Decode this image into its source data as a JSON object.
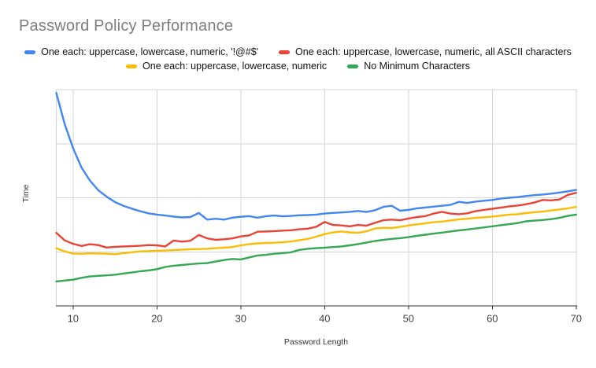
{
  "title": "Password Policy Performance",
  "colors": {
    "background": "#ffffff",
    "title_text": "#7e7e7e",
    "legend_text": "#111111",
    "axis_title_text": "#333333",
    "tick_text": "#444444",
    "gridline": "#d5d5d5",
    "axis_line": "#333333",
    "series_blue": "#4285F4",
    "series_red": "#EA4335",
    "series_yellow": "#FBBC04",
    "series_green": "#34A853"
  },
  "chart_data": {
    "type": "line",
    "title": "Password Policy Performance",
    "xlabel": "Password Length",
    "ylabel": "Time",
    "legend_position": "top",
    "grid": true,
    "xlim": [
      8,
      70
    ],
    "ylim": [
      0,
      100
    ],
    "x_ticks": [
      10,
      20,
      30,
      40,
      50,
      60,
      70
    ],
    "y_tick_labels_shown": false,
    "y_note": "y axis is unlabeled ('Time'); values below are relative units of plot height (0-100)",
    "x": [
      8,
      9,
      10,
      11,
      12,
      13,
      14,
      15,
      16,
      17,
      18,
      19,
      20,
      21,
      22,
      23,
      24,
      25,
      26,
      27,
      28,
      29,
      30,
      31,
      32,
      33,
      34,
      35,
      36,
      37,
      38,
      39,
      40,
      41,
      42,
      43,
      44,
      45,
      46,
      47,
      48,
      49,
      50,
      51,
      52,
      53,
      54,
      55,
      56,
      57,
      58,
      59,
      60,
      61,
      62,
      63,
      64,
      65,
      66,
      67,
      68,
      69,
      70
    ],
    "series": [
      {
        "name": "One each: uppercase, lowercase, numeric, '!@#$'",
        "color": "#4285F4",
        "values": [
          98.5,
          84,
          73,
          64,
          58,
          53.5,
          50.5,
          48,
          46.3,
          45,
          43.8,
          42.8,
          42.2,
          41.8,
          41.3,
          40.9,
          41.1,
          43,
          39.9,
          40.3,
          39.9,
          40.8,
          41.2,
          41.5,
          40.8,
          41.5,
          41.8,
          41.4,
          41.6,
          41.9,
          42,
          42.2,
          42.7,
          43,
          43.2,
          43.5,
          43.9,
          43.4,
          44.2,
          45.8,
          46.3,
          44,
          44.4,
          45.1,
          45.5,
          45.9,
          46.3,
          46.7,
          48.1,
          47.6,
          48.2,
          48.6,
          49,
          49.6,
          50,
          50.3,
          50.8,
          51.2,
          51.5,
          51.9,
          52.4,
          53,
          53.6
        ]
      },
      {
        "name": "One each: uppercase, lowercase, numeric, all ASCII characters",
        "color": "#EA4335",
        "values": [
          33.8,
          30.3,
          28.7,
          27.7,
          28.5,
          28.1,
          27,
          27.3,
          27.5,
          27.6,
          27.8,
          28.1,
          28,
          27.5,
          30.2,
          29.7,
          30.1,
          32.8,
          31.2,
          30.6,
          30.8,
          31.2,
          32.1,
          32.6,
          34.3,
          34.4,
          34.6,
          34.8,
          35,
          35.4,
          35.7,
          36.6,
          38.8,
          37.4,
          37.2,
          36.8,
          37.4,
          37.1,
          38.4,
          39.6,
          39.9,
          39.6,
          40.4,
          41.1,
          41.5,
          42.7,
          43.5,
          42.7,
          42.4,
          42.8,
          43.8,
          44.4,
          44.9,
          45.4,
          46,
          46.4,
          47,
          47.8,
          49,
          48.8,
          49.2,
          51.3,
          52.3
        ]
      },
      {
        "name": "One each: uppercase, lowercase, numeric",
        "color": "#FBBC04",
        "values": [
          26.7,
          25.2,
          24.2,
          24.1,
          24.3,
          24.2,
          24.1,
          23.9,
          24.4,
          24.8,
          25.2,
          25.3,
          25.5,
          25.6,
          25.8,
          26,
          26.2,
          26.3,
          26.4,
          26.7,
          26.9,
          27.2,
          28,
          28.5,
          28.9,
          29.1,
          29.2,
          29.4,
          29.8,
          30.4,
          31,
          32,
          33.2,
          34,
          34.4,
          34,
          33.8,
          34.5,
          35.8,
          36.1,
          36,
          36.5,
          37.2,
          37.7,
          38.2,
          38.7,
          39,
          39.5,
          40,
          40.3,
          40.7,
          41,
          41.3,
          41.7,
          42.2,
          42.4,
          42.9,
          43.3,
          43.6,
          44.1,
          44.6,
          45.1,
          45.8
        ]
      },
      {
        "name": "No Minimum Characters",
        "color": "#34A853",
        "values": [
          11.3,
          11.7,
          12.1,
          13,
          13.6,
          13.9,
          14.1,
          14.4,
          15,
          15.4,
          16,
          16.4,
          17,
          18,
          18.6,
          18.9,
          19.3,
          19.6,
          19.8,
          20.5,
          21.2,
          21.7,
          21.5,
          22.4,
          23.3,
          23.6,
          24.1,
          24.4,
          24.8,
          25.9,
          26.4,
          26.7,
          26.9,
          27.2,
          27.5,
          28,
          28.6,
          29.3,
          30,
          30.5,
          31,
          31.3,
          31.8,
          32.4,
          32.9,
          33.4,
          33.9,
          34.4,
          34.9,
          35.3,
          35.8,
          36.3,
          36.8,
          37.3,
          37.8,
          38.3,
          39.1,
          39.4,
          39.7,
          40.1,
          40.7,
          41.6,
          42.2
        ]
      }
    ]
  }
}
